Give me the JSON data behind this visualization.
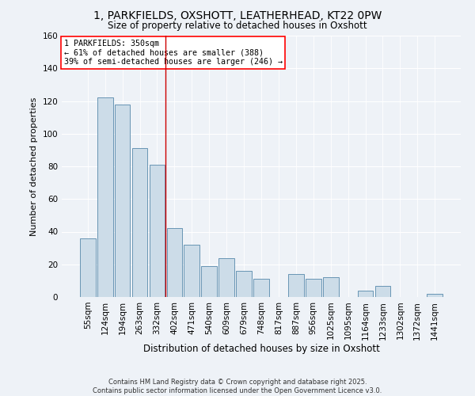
{
  "title1": "1, PARKFIELDS, OXSHOTT, LEATHERHEAD, KT22 0PW",
  "title2": "Size of property relative to detached houses in Oxshott",
  "xlabel": "Distribution of detached houses by size in Oxshott",
  "ylabel": "Number of detached properties",
  "categories": [
    "55sqm",
    "124sqm",
    "194sqm",
    "263sqm",
    "332sqm",
    "402sqm",
    "471sqm",
    "540sqm",
    "609sqm",
    "679sqm",
    "748sqm",
    "817sqm",
    "887sqm",
    "956sqm",
    "1025sqm",
    "1095sqm",
    "1164sqm",
    "1233sqm",
    "1302sqm",
    "1372sqm",
    "1441sqm"
  ],
  "values": [
    36,
    122,
    118,
    91,
    81,
    42,
    32,
    19,
    24,
    16,
    11,
    0,
    14,
    11,
    12,
    0,
    4,
    7,
    0,
    0,
    2
  ],
  "bar_color": "#ccdce8",
  "bar_edge_color": "#5588aa",
  "annotation_line1": "1 PARKFIELDS: 350sqm",
  "annotation_line2": "← 61% of detached houses are smaller (388)",
  "annotation_line3": "39% of semi-detached houses are larger (246) →",
  "vline_x_index": 4.5,
  "vline_color": "#cc0000",
  "background_color": "#eef2f7",
  "grid_color": "#ffffff",
  "footer_text": "Contains HM Land Registry data © Crown copyright and database right 2025.\nContains public sector information licensed under the Open Government Licence v3.0.",
  "ylim": [
    0,
    160
  ],
  "yticks": [
    0,
    20,
    40,
    60,
    80,
    100,
    120,
    140,
    160
  ]
}
